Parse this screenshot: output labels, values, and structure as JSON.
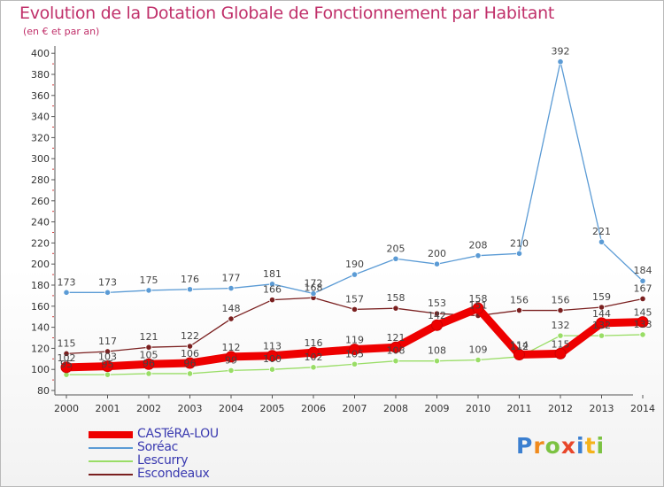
{
  "chart_data": {
    "type": "line",
    "title": "Evolution de la Dotation Globale de Fonctionnement par Habitant",
    "subtitle": "(en € et par an)",
    "xlabel": "",
    "ylabel": "",
    "ylim": [
      80,
      400
    ],
    "ytick_step": 20,
    "grid": false,
    "legend_position": "bottom-left",
    "x": [
      2000,
      2001,
      2002,
      2003,
      2004,
      2005,
      2006,
      2007,
      2008,
      2009,
      2010,
      2011,
      2012,
      2013,
      2014
    ],
    "series": [
      {
        "name": "CASTéRA-LOU",
        "color": "#ee0000",
        "values": [
          102,
          103,
          105,
          106,
          112,
          113,
          116,
          119,
          121,
          142,
          158,
          114,
          115,
          144,
          145
        ],
        "labels": [
          "102",
          "103",
          "105",
          "106",
          "112",
          "113",
          "116",
          "119",
          "121",
          "142",
          "158",
          "114",
          "115",
          "144",
          "145"
        ]
      },
      {
        "name": "Soréac",
        "color": "#5b9bd5",
        "values": [
          173,
          173,
          175,
          176,
          177,
          181,
          172,
          190,
          205,
          200,
          208,
          210,
          392,
          221,
          184
        ],
        "labels": [
          "173",
          "173",
          "175",
          "176",
          "177",
          "181",
          "172",
          "190",
          "205",
          "200",
          "208",
          "210",
          "392",
          "221",
          "184"
        ]
      },
      {
        "name": "Lescurry",
        "color": "#99dd66",
        "values": [
          95,
          95,
          96,
          96,
          99,
          100,
          102,
          105,
          108,
          108,
          109,
          112,
          132,
          132,
          133
        ],
        "labels": [
          "95",
          "95",
          "96",
          "96",
          "99",
          "100",
          "102",
          "105",
          "108",
          "108",
          "109",
          "112",
          "132",
          "132",
          "133"
        ]
      },
      {
        "name": "Escondeaux",
        "color": "#7a1f1f",
        "values": [
          115,
          117,
          121,
          122,
          148,
          166,
          168,
          157,
          158,
          153,
          151,
          156,
          156,
          159,
          167
        ],
        "labels": [
          "115",
          "117",
          "121",
          "122",
          "148",
          "166",
          "168",
          "157",
          "158",
          "153",
          "151",
          "156",
          "156",
          "159",
          "167"
        ]
      }
    ]
  },
  "logo": {
    "letters": [
      "P",
      "r",
      "o",
      "x",
      "i",
      "t",
      "i"
    ]
  }
}
